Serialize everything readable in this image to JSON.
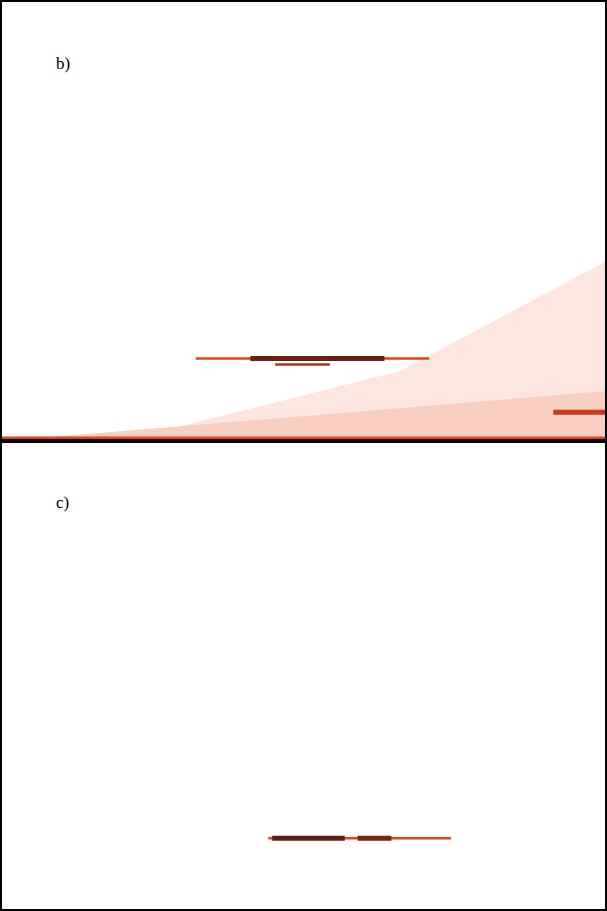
{
  "chart_data": [
    {
      "type": "line",
      "title": "b)",
      "xlim": [
        0,
        607
      ],
      "ylim": [
        0,
        441
      ],
      "tick_labels": false,
      "grid": false,
      "series": [
        {
          "type": "area",
          "color": "#fde6df",
          "x": [
            120,
            400,
            607,
            607,
            120
          ],
          "values": [
            0,
            70,
            180,
            0,
            0
          ]
        },
        {
          "type": "area",
          "color": "#f9cfc2",
          "x": [
            0,
            607,
            607,
            0
          ],
          "values": [
            0,
            50,
            0,
            0
          ]
        },
        {
          "type": "line",
          "color": "#e8401c",
          "line_style": "bold",
          "x": [
            0,
            607
          ],
          "values": [
            2,
            2
          ]
        },
        {
          "type": "line",
          "color": "#e8401c",
          "line_style": "solid",
          "x": [
            195,
            430
          ],
          "values": [
            83,
            83
          ]
        },
        {
          "type": "line",
          "color": "#6b2214",
          "line_style": "bold",
          "x": [
            250,
            385
          ],
          "values": [
            83,
            83
          ]
        },
        {
          "type": "line",
          "color": "#a8321b",
          "line_style": "solid",
          "x": [
            275,
            330
          ],
          "values": [
            77,
            77
          ]
        },
        {
          "type": "line",
          "color": "#c8391b",
          "line_style": "bold",
          "x": [
            555,
            607
          ],
          "values": [
            29,
            29
          ]
        }
      ]
    },
    {
      "type": "line",
      "title": "c)",
      "xlim": [
        0,
        607
      ],
      "ylim": [
        0,
        470
      ],
      "tick_labels": false,
      "grid": false,
      "series": [
        {
          "type": "line",
          "color": "#e8401c",
          "line_style": "solid",
          "x": [
            268,
            452
          ],
          "values": [
            71,
            71
          ]
        },
        {
          "type": "line",
          "color": "#5a1e12",
          "line_style": "bold",
          "x": [
            272,
            345
          ],
          "values": [
            71,
            71
          ]
        },
        {
          "type": "line",
          "color": "#7a2616",
          "line_style": "bold",
          "x": [
            358,
            392
          ],
          "values": [
            71,
            71
          ]
        }
      ]
    }
  ]
}
